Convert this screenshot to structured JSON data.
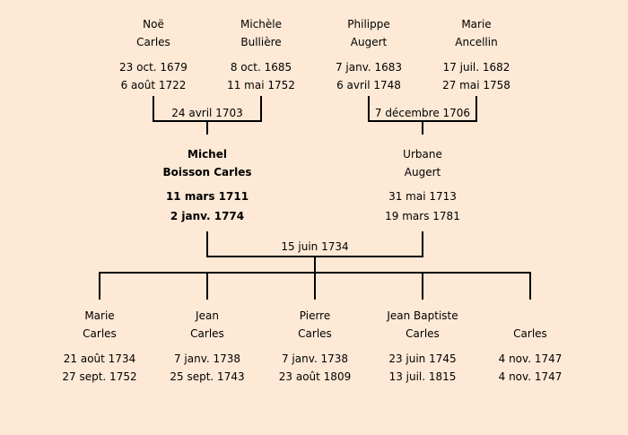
{
  "grandparents": [
    {
      "first": "Noë",
      "last": "Carles",
      "birth": "23 oct. 1679",
      "death": "6 août 1722"
    },
    {
      "first": "Michèle",
      "last": "Bullière",
      "birth": "8 oct. 1685",
      "death": "11 mai 1752"
    },
    {
      "first": "Philippe",
      "last": "Augert",
      "birth": "7 janv. 1683",
      "death": "6 avril 1748"
    },
    {
      "first": "Marie",
      "last": "Ancellin",
      "birth": "17 juil. 1682",
      "death": "27 mai 1758"
    }
  ],
  "grandparent_marriages": [
    "24 avril 1703",
    "7 décembre 1706"
  ],
  "parents": [
    {
      "first": "Michel",
      "last": "Boisson Carles",
      "birth": "11 mars 1711",
      "death": "2 janv. 1774",
      "highlighted": true
    },
    {
      "first": "Urbane",
      "last": "Augert",
      "birth": "31 mai 1713",
      "death": "19 mars 1781"
    }
  ],
  "parent_marriage": "15 juin 1734",
  "children": [
    {
      "first": "Marie",
      "last": "Carles",
      "birth": "21 août 1734",
      "death": "27 sept. 1752"
    },
    {
      "first": "Jean",
      "last": "Carles",
      "birth": "7 janv. 1738",
      "death": "25 sept. 1743"
    },
    {
      "first": "Pierre",
      "last": "Carles",
      "birth": "7 janv. 1738",
      "death": "23 août 1809"
    },
    {
      "first": "Jean Baptiste",
      "last": "Carles",
      "birth": "23 juin 1745",
      "death": "13 juil. 1815"
    },
    {
      "first": "",
      "last": "Carles",
      "birth": "4 nov. 1747",
      "death": "4 nov. 1747"
    }
  ],
  "colors": {
    "background": "#fde9d6",
    "lines": "#000000"
  }
}
